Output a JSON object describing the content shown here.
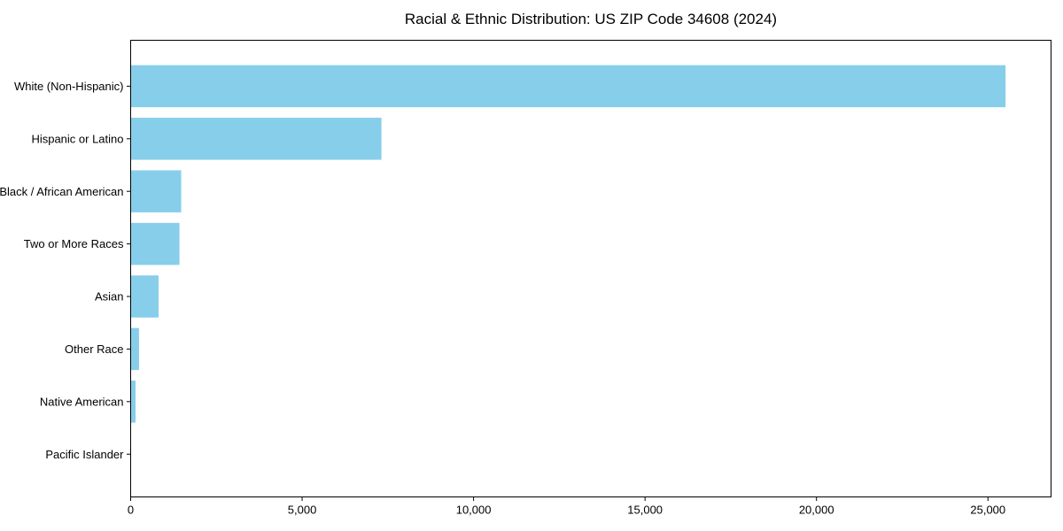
{
  "chart_data": {
    "type": "bar",
    "orientation": "horizontal",
    "title": "Racial & Ethnic Distribution: US ZIP Code 34608 (2024)",
    "categories": [
      "White (Non-Hispanic)",
      "Hispanic or Latino",
      "Black / African American",
      "Two or More Races",
      "Asian",
      "Other Race",
      "Native American",
      "Pacific Islander"
    ],
    "values": [
      25500,
      7300,
      1460,
      1410,
      800,
      230,
      130,
      0
    ],
    "xlabel": "",
    "ylabel": "",
    "xlim": [
      0,
      26840
    ],
    "xticks": [
      0,
      5000,
      10000,
      15000,
      20000,
      25000
    ],
    "xtick_labels": [
      "0",
      "5,000",
      "10,000",
      "15,000",
      "20,000",
      "25,000"
    ],
    "bar_color": "#87CEEB",
    "axis_color": "#000000",
    "background_color": "#ffffff",
    "grid": false,
    "legend": "none"
  }
}
